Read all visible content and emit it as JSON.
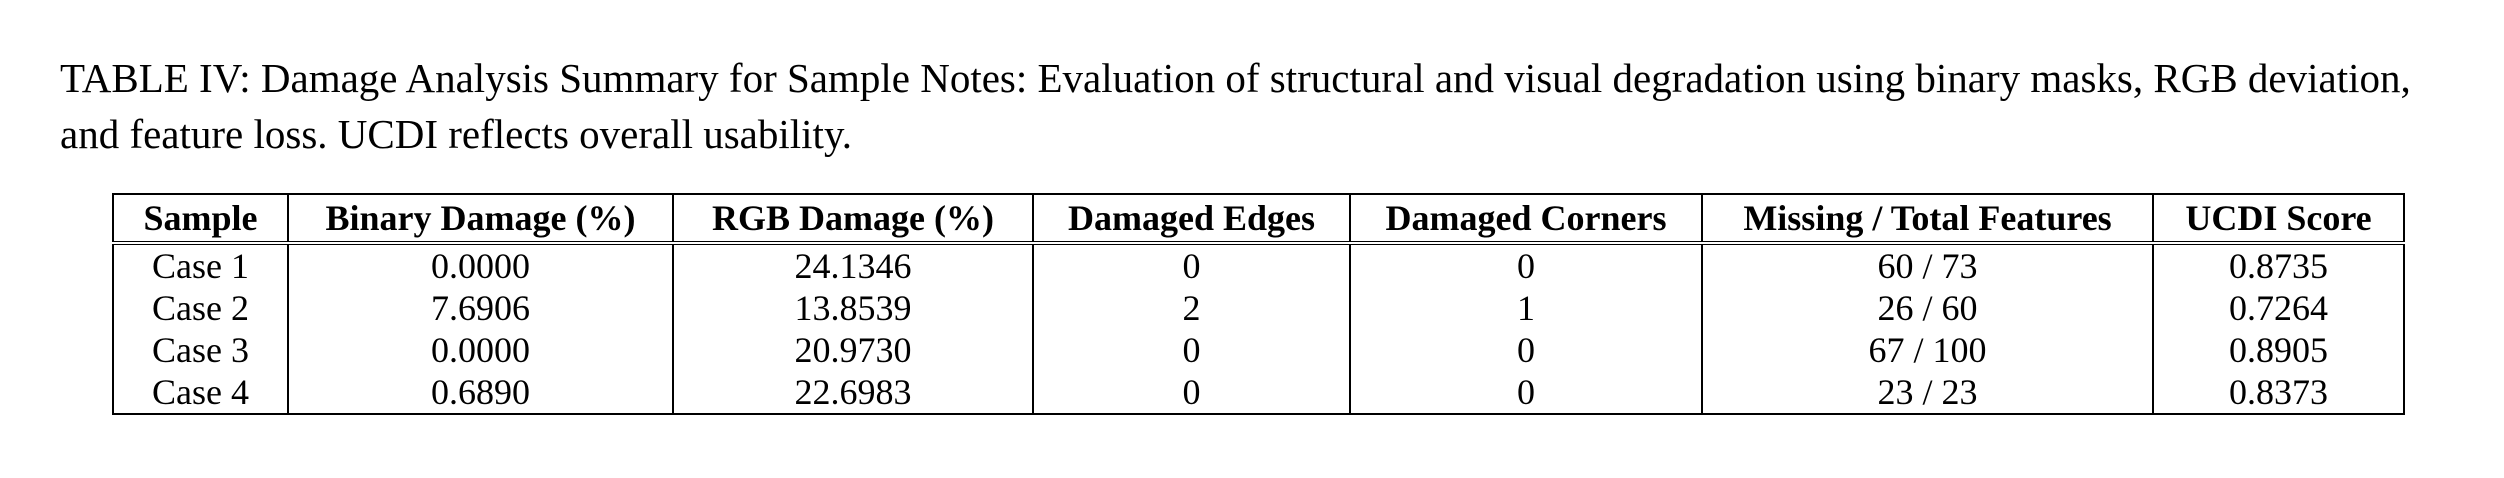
{
  "caption": "TABLE IV: Damage Analysis Summary for Sample Notes: Evaluation of structural and visual degradation using binary masks, RGB deviation, and feature loss. UCDI reflects overall usability.",
  "table": {
    "headers": [
      "Sample",
      "Binary Damage (%)",
      "RGB Damage (%)",
      "Damaged Edges",
      "Damaged Corners",
      "Missing / Total Features",
      "UCDI Score"
    ],
    "rows": [
      [
        "Case 1",
        "0.0000",
        "24.1346",
        "0",
        "0",
        "60 / 73",
        "0.8735"
      ],
      [
        "Case 2",
        "7.6906",
        "13.8539",
        "2",
        "1",
        "26 / 60",
        "0.7264"
      ],
      [
        "Case 3",
        "0.0000",
        "20.9730",
        "0",
        "0",
        "67 / 100",
        "0.8905"
      ],
      [
        "Case 4",
        "0.6890",
        "22.6983",
        "0",
        "0",
        "23 / 23",
        "0.8373"
      ]
    ]
  }
}
